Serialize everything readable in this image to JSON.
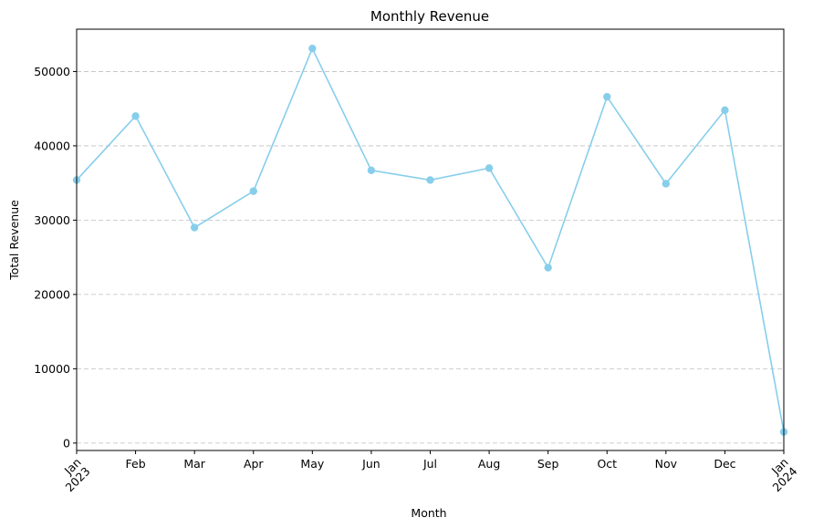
{
  "chart_data": {
    "type": "line",
    "title": "Monthly Revenue",
    "xlabel": "Month",
    "ylabel": "Total Revenue",
    "x": [
      "Jan 2023",
      "Feb",
      "Mar",
      "Apr",
      "May",
      "Jun",
      "Jul",
      "Aug",
      "Sep",
      "Oct",
      "Nov",
      "Dec",
      "Jan 2024"
    ],
    "x_tick_labels": [
      [
        "Jan",
        "2023"
      ],
      [
        "Feb"
      ],
      [
        "Mar"
      ],
      [
        "Apr"
      ],
      [
        "May"
      ],
      [
        "Jun"
      ],
      [
        "Jul"
      ],
      [
        "Aug"
      ],
      [
        "Sep"
      ],
      [
        "Oct"
      ],
      [
        "Nov"
      ],
      [
        "Dec"
      ],
      [
        "Jan",
        "2024"
      ]
    ],
    "series": [
      {
        "values": [
          35400,
          44000,
          29000,
          33900,
          53100,
          36700,
          35400,
          37000,
          23600,
          46600,
          34900,
          44800,
          1500
        ],
        "color": "#87CEEB"
      }
    ],
    "ylim": [
      -1000,
      55700
    ],
    "yticks": [
      0,
      10000,
      20000,
      30000,
      40000,
      50000
    ],
    "grid": "y-dashed",
    "legend": "none"
  }
}
